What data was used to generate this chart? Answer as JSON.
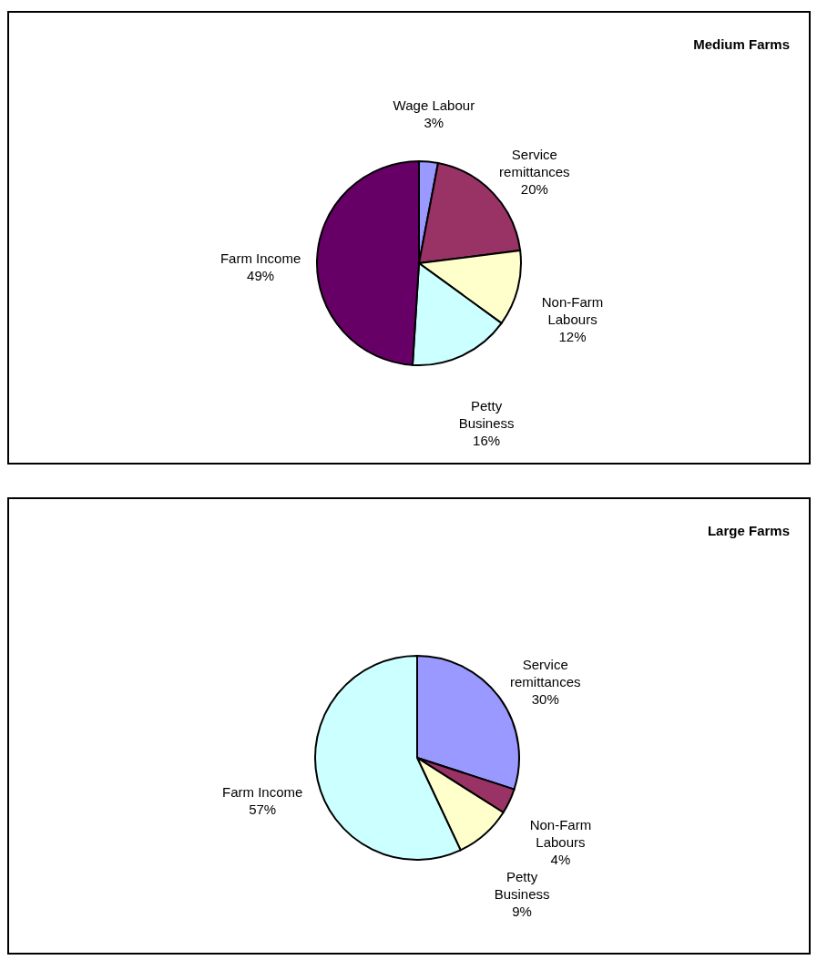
{
  "chart_data": [
    {
      "type": "pie",
      "title": "Medium Farms",
      "categories": [
        "Wage Labour",
        "Service remittances",
        "Non-Farm Labours",
        "Petty Business",
        "Farm Income"
      ],
      "values": [
        3,
        20,
        12,
        16,
        49
      ],
      "colors": [
        "#9999ff",
        "#993366",
        "#ffffcc",
        "#ccffff",
        "#660066"
      ],
      "value_labels": [
        "3%",
        "20%",
        "12%",
        "16%",
        "49%"
      ]
    },
    {
      "type": "pie",
      "title": "Large Farms",
      "categories": [
        "Service remittances",
        "Non-Farm Labours",
        "Petty Business",
        "Farm Income"
      ],
      "values": [
        30,
        4,
        9,
        57
      ],
      "colors": [
        "#9999ff",
        "#993366",
        "#ffffcc",
        "#ccffff"
      ],
      "value_labels": [
        "30%",
        "4%",
        "9%",
        "57%"
      ]
    }
  ]
}
